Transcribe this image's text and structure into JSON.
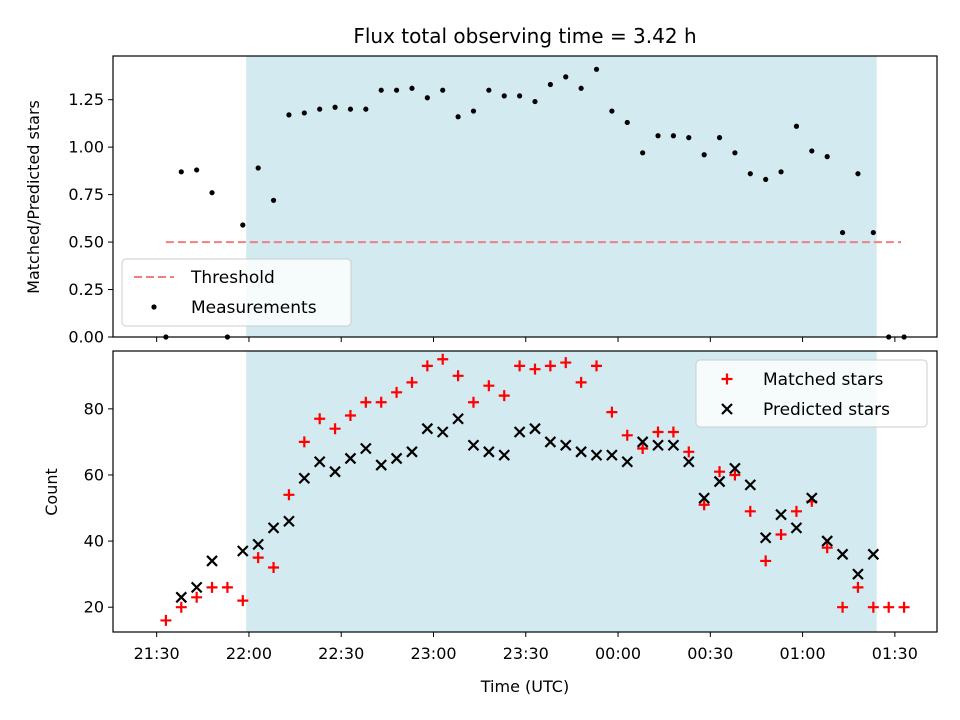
{
  "chart_data": {
    "type": "scatter",
    "title": "Flux total observing time = 3.42 h",
    "xlabel": "Time (UTC)",
    "x_unit": "minutes since 21:00 UTC",
    "x_ticks": [
      {
        "value": 30,
        "label": "21:30"
      },
      {
        "value": 60,
        "label": "22:00"
      },
      {
        "value": 90,
        "label": "22:30"
      },
      {
        "value": 120,
        "label": "23:00"
      },
      {
        "value": 150,
        "label": "23:30"
      },
      {
        "value": 180,
        "label": "00:00"
      },
      {
        "value": 210,
        "label": "00:30"
      },
      {
        "value": 240,
        "label": "01:00"
      },
      {
        "value": 270,
        "label": "01:30"
      }
    ],
    "xlim": [
      15.8,
      283.7
    ],
    "observing_window": [
      59.1,
      264.1
    ],
    "observing_window_color": "#d3eaf0",
    "top": {
      "ylabel": "Matched/Predicted stars",
      "ylim": [
        0,
        1.48
      ],
      "y_ticks": [
        0,
        0.25,
        0.5,
        0.75,
        1.0,
        1.25
      ],
      "y_tick_labels": [
        "0.00",
        "0.25",
        "0.50",
        "0.75",
        "1.00",
        "1.25"
      ],
      "threshold": {
        "name": "Threshold",
        "value": 0.5,
        "x_range": [
          33,
          272
        ],
        "color": "#f08080"
      },
      "measurements": {
        "name": "Measurements",
        "color": "#000000",
        "x": [
          33,
          38,
          43,
          48,
          53,
          58,
          63,
          68,
          73,
          78,
          83,
          88,
          93,
          98,
          103,
          108,
          113,
          118,
          123,
          128,
          133,
          138,
          143,
          148,
          153,
          158,
          163,
          168,
          173,
          178,
          183,
          188,
          193,
          198,
          203,
          208,
          213,
          218,
          223,
          228,
          233,
          238,
          243,
          248,
          253,
          258,
          263,
          268,
          273
        ],
        "y": [
          0.0,
          0.87,
          0.88,
          0.76,
          0.0,
          0.59,
          0.89,
          0.72,
          1.17,
          1.18,
          1.2,
          1.21,
          1.2,
          1.2,
          1.3,
          1.3,
          1.31,
          1.26,
          1.3,
          1.16,
          1.19,
          1.3,
          1.27,
          1.27,
          1.24,
          1.33,
          1.37,
          1.31,
          1.41,
          1.19,
          1.13,
          0.97,
          1.06,
          1.06,
          1.05,
          0.96,
          1.05,
          0.97,
          0.86,
          0.83,
          0.87,
          1.11,
          0.98,
          0.95,
          0.55,
          0.86,
          0.55,
          0.0,
          0.0
        ]
      }
    },
    "bottom": {
      "ylabel": "Count",
      "ylim": [
        12.5,
        97.5
      ],
      "y_ticks": [
        20,
        40,
        60,
        80
      ],
      "y_tick_labels": [
        "20",
        "40",
        "60",
        "80"
      ],
      "series": [
        {
          "name": "Matched stars",
          "marker": "+",
          "color": "#ff0000",
          "x": [
            33,
            38,
            43,
            48,
            53,
            58,
            63,
            68,
            73,
            78,
            83,
            88,
            93,
            98,
            103,
            108,
            113,
            118,
            123,
            128,
            133,
            138,
            143,
            148,
            153,
            158,
            163,
            168,
            173,
            178,
            183,
            188,
            193,
            198,
            203,
            208,
            213,
            218,
            223,
            228,
            233,
            238,
            243,
            248,
            253,
            258,
            263,
            268,
            273
          ],
          "y": [
            16,
            20,
            23,
            26,
            26,
            22,
            35,
            32,
            54,
            70,
            77,
            74,
            78,
            82,
            82,
            85,
            88,
            93,
            95,
            90,
            82,
            87,
            84,
            93,
            92,
            93,
            94,
            88,
            93,
            79,
            72,
            68,
            73,
            73,
            67,
            51,
            61,
            60,
            49,
            34,
            42,
            49,
            52,
            38,
            20,
            26,
            20,
            20,
            20
          ]
        },
        {
          "name": "Predicted stars",
          "marker": "x",
          "color": "#000000",
          "x": [
            38,
            43,
            48,
            58,
            63,
            68,
            73,
            78,
            83,
            88,
            93,
            98,
            103,
            108,
            113,
            118,
            123,
            128,
            133,
            138,
            143,
            148,
            153,
            158,
            163,
            168,
            173,
            178,
            183,
            188,
            193,
            198,
            203,
            208,
            213,
            218,
            223,
            228,
            233,
            238,
            243,
            248,
            253,
            258,
            263
          ],
          "y": [
            23,
            26,
            34,
            37,
            39,
            44,
            46,
            59,
            64,
            61,
            65,
            68,
            63,
            65,
            67,
            74,
            73,
            77,
            69,
            67,
            66,
            73,
            74,
            70,
            69,
            67,
            66,
            66,
            64,
            70,
            69,
            69,
            64,
            53,
            58,
            62,
            57,
            41,
            48,
            44,
            53,
            40,
            36,
            30,
            36
          ]
        }
      ]
    }
  }
}
